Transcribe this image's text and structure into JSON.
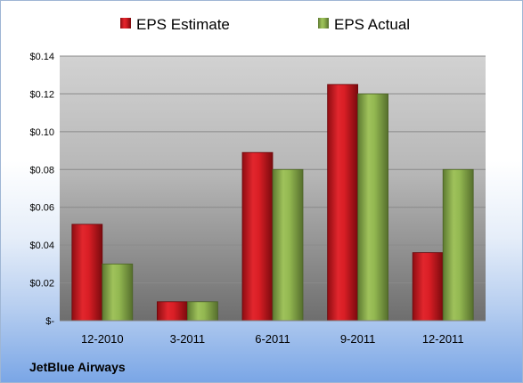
{
  "chart_data": {
    "type": "bar",
    "categories": [
      "12-2010",
      "3-2011",
      "6-2011",
      "9-2011",
      "12-2011"
    ],
    "series": [
      {
        "name": "EPS Estimate",
        "values": [
          0.051,
          0.01,
          0.089,
          0.125,
          0.036
        ],
        "color": "#c0161d"
      },
      {
        "name": "EPS Actual",
        "values": [
          0.03,
          0.01,
          0.08,
          0.12,
          0.08
        ],
        "color": "#84a74a"
      }
    ],
    "yticks": [
      {
        "value": 0,
        "label": "$-"
      },
      {
        "value": 0.02,
        "label": "$0.02"
      },
      {
        "value": 0.04,
        "label": "$0.04"
      },
      {
        "value": 0.06,
        "label": "$0.06"
      },
      {
        "value": 0.08,
        "label": "$0.08"
      },
      {
        "value": 0.1,
        "label": "$0.10"
      },
      {
        "value": 0.12,
        "label": "$0.12"
      },
      {
        "value": 0.14,
        "label": "$0.14"
      }
    ],
    "ylim": [
      0,
      0.14
    ],
    "grid": true,
    "legend_position": "top",
    "company": "JetBlue Airways"
  }
}
